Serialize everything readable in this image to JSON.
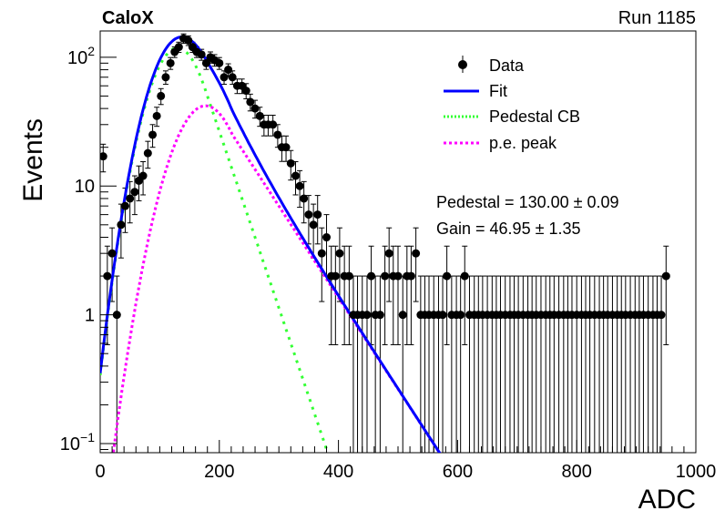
{
  "chart_data": {
    "type": "scatter",
    "title": "CaloX",
    "run_label": "Run 1185",
    "xlabel": "ADC",
    "ylabel": "Events",
    "xlim": [
      0,
      1000
    ],
    "ylim": [
      0.085,
      160
    ],
    "yscale": "log",
    "x_ticks": [
      "0",
      "200",
      "400",
      "600",
      "800",
      "1000"
    ],
    "y_ticks": [
      {
        "value": 0.1,
        "base": "10",
        "exp": "−1"
      },
      {
        "value": 1,
        "label": "1"
      },
      {
        "value": 10,
        "label": "10"
      },
      {
        "value": 100,
        "base": "10",
        "exp": "2"
      }
    ],
    "legend": [
      {
        "label": "Data",
        "style": "marker",
        "color": "#000000"
      },
      {
        "label": "Fit",
        "style": "solid",
        "color": "#0000ff"
      },
      {
        "label": "Pedestal CB",
        "style": "dotted",
        "color": "#33ff33"
      },
      {
        "label": "p.e. peak",
        "style": "dashed",
        "color": "#ff00ff"
      }
    ],
    "fit_results": {
      "pedestal": "Pedestal = 130.00 ± 0.09",
      "gain": "Gain = 46.95 ± 1.35"
    },
    "data_points": {
      "x": [
        5,
        12,
        20,
        28,
        35,
        42,
        50,
        58,
        65,
        72,
        80,
        88,
        95,
        102,
        110,
        118,
        125,
        132,
        140,
        148,
        155,
        162,
        170,
        178,
        185,
        192,
        200,
        208,
        215,
        222,
        230,
        238,
        245,
        252,
        260,
        268,
        275,
        282,
        290,
        298,
        305,
        312,
        320,
        328,
        335,
        342,
        350,
        358,
        365,
        372,
        380,
        388,
        395,
        402,
        410,
        418,
        425,
        432,
        440,
        448,
        455,
        462,
        470,
        478,
        485,
        492,
        500,
        508,
        515,
        522,
        530,
        538,
        545,
        552,
        560,
        568,
        575,
        582,
        590,
        598,
        605,
        612,
        620,
        628,
        635,
        642,
        650,
        658,
        665,
        672,
        680,
        688,
        695,
        702,
        710,
        718,
        725,
        732,
        740,
        748,
        755,
        762,
        770,
        778,
        785,
        792,
        800,
        808,
        815,
        822,
        830,
        838,
        845,
        852,
        860,
        868,
        875,
        882,
        890,
        898,
        905,
        912,
        920,
        928,
        935,
        942,
        950
      ],
      "y": [
        17,
        2,
        3,
        1,
        5,
        7,
        8,
        9,
        11,
        12,
        18,
        25,
        35,
        50,
        70,
        90,
        110,
        120,
        140,
        135,
        120,
        110,
        105,
        90,
        100,
        95,
        90,
        70,
        80,
        70,
        60,
        60,
        55,
        45,
        40,
        35,
        30,
        30,
        30,
        25,
        20,
        20,
        15,
        12,
        10,
        8,
        6,
        5,
        6,
        3,
        4,
        2,
        2,
        3,
        2,
        2,
        1,
        1,
        1,
        1,
        2,
        1,
        1,
        2,
        3,
        2,
        2,
        1,
        2,
        2,
        3,
        1,
        1,
        1,
        1,
        1,
        1,
        2,
        1,
        1,
        1,
        2,
        1,
        1,
        1,
        1,
        1,
        1,
        1,
        1,
        1,
        1,
        1,
        1,
        1,
        1,
        1,
        1,
        1,
        1,
        1,
        1,
        1,
        1,
        1,
        1,
        1,
        1,
        1,
        1,
        1,
        1,
        1,
        1,
        1,
        1,
        1,
        1,
        1,
        1,
        1,
        1,
        1,
        1,
        1,
        1,
        2
      ]
    }
  }
}
